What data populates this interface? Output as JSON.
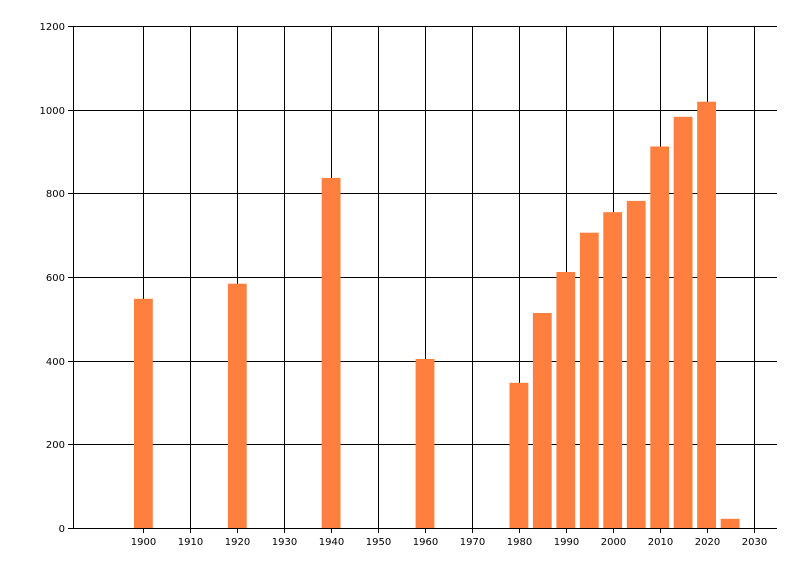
{
  "chart_data": {
    "type": "bar",
    "x": [
      1900,
      1920,
      1940,
      1960,
      1980,
      1985,
      1990,
      1995,
      2000,
      2005,
      2010,
      2015,
      2020,
      2025
    ],
    "values": [
      548,
      584,
      837,
      404,
      347,
      514,
      612,
      706,
      755,
      782,
      912,
      983,
      1019,
      22
    ],
    "xlim": [
      1885,
      2035
    ],
    "ylim": [
      0,
      1200
    ],
    "xticks": [
      1900,
      1910,
      1920,
      1930,
      1940,
      1950,
      1960,
      1970,
      1980,
      1990,
      2000,
      2010,
      2020,
      2030
    ],
    "yticks": [
      0,
      200,
      400,
      600,
      800,
      1000,
      1200
    ],
    "bar_width_years": 4,
    "grid": true,
    "bar_color": "#ff7f3f",
    "grid_color": "#000000",
    "title": "",
    "xlabel": "",
    "ylabel": ""
  }
}
